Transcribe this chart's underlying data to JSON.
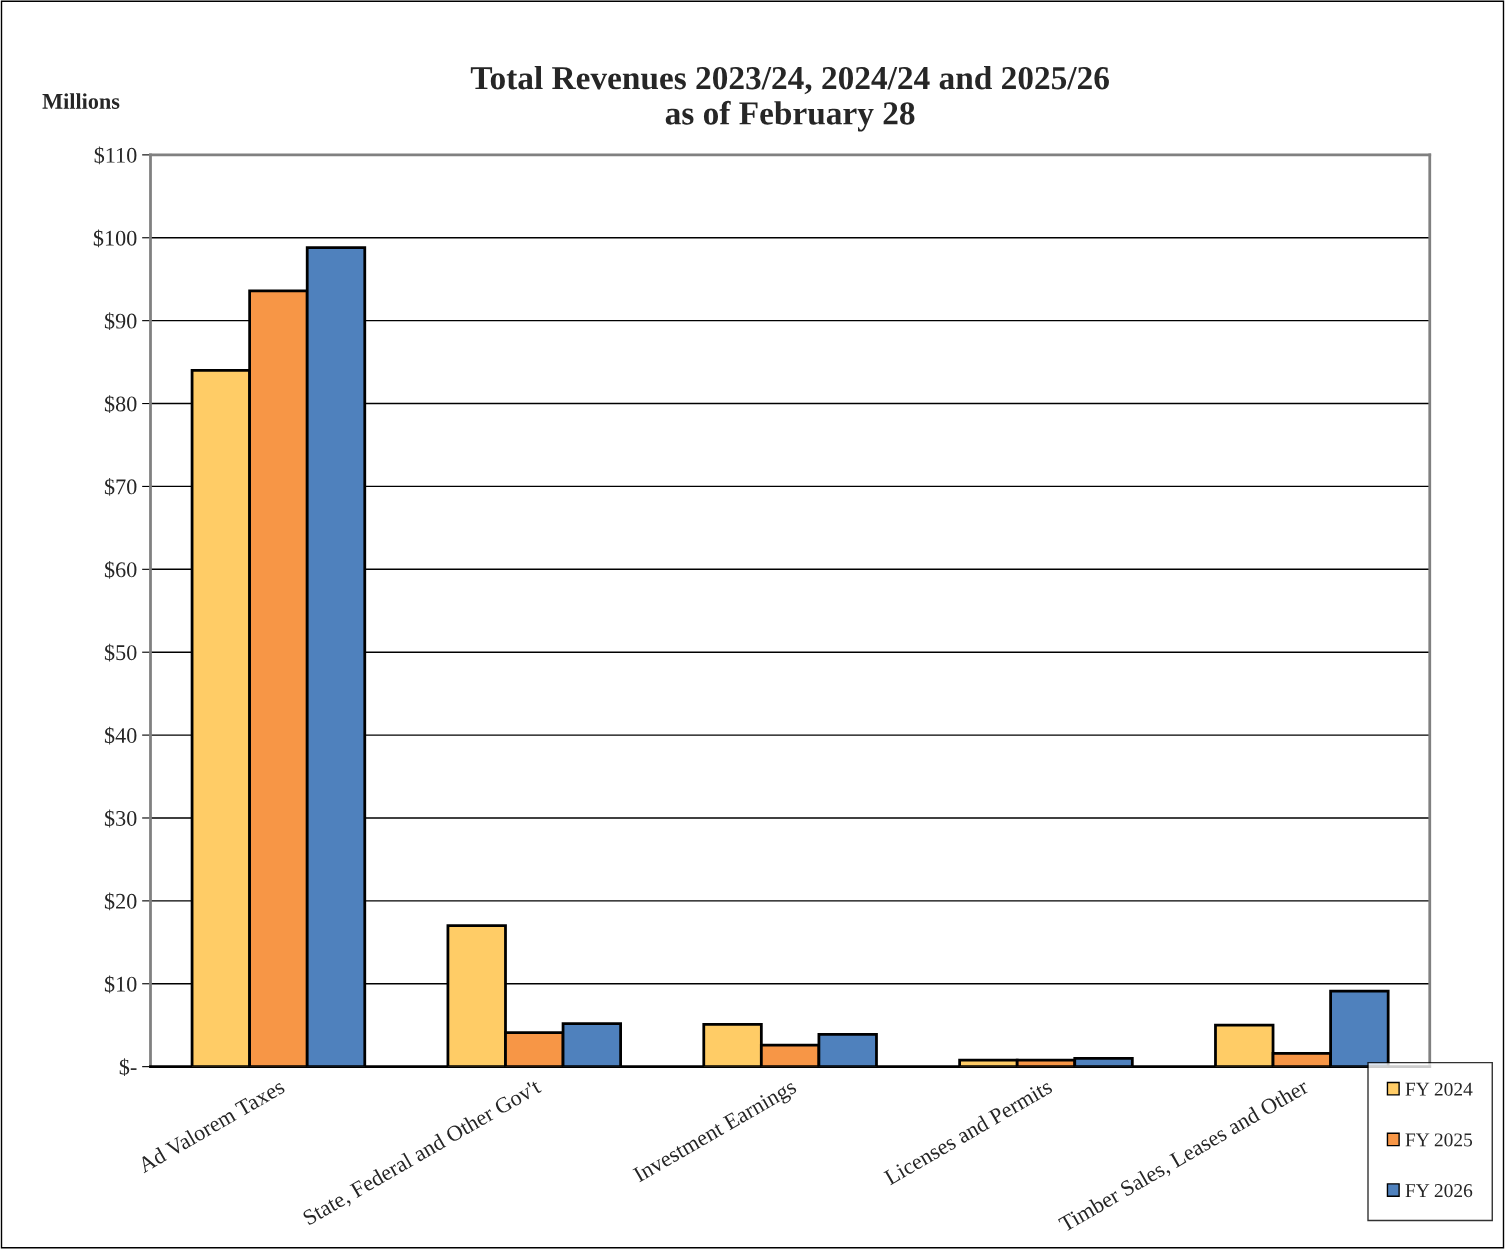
{
  "chart_data": {
    "type": "bar",
    "title": "Total Revenues 2023/24, 2024/24 and 2025/26\nas of February 28",
    "ylabel": "Millions",
    "categories": [
      "Ad Valorem Taxes",
      "State, Federal and Other Gov't",
      "Investment Earnings",
      "Licenses and Permits",
      "Timber Sales, Leases and Other"
    ],
    "series": [
      {
        "name": "FY 2024",
        "color": "#ffcc66",
        "values": [
          84.0,
          17.0,
          5.1,
          0.8,
          5.0
        ]
      },
      {
        "name": "FY 2025",
        "color": "#f79646",
        "values": [
          93.6,
          4.1,
          2.6,
          0.8,
          1.6
        ]
      },
      {
        "name": "FY 2026",
        "color": "#4f81bd",
        "values": [
          98.8,
          5.2,
          3.9,
          1.0,
          9.1
        ]
      }
    ],
    "ylim": [
      0,
      110
    ],
    "yticks": [
      {
        "value": 0,
        "label": "$-"
      },
      {
        "value": 10,
        "label": "$10"
      },
      {
        "value": 20,
        "label": "$20"
      },
      {
        "value": 30,
        "label": "$30"
      },
      {
        "value": 40,
        "label": "$40"
      },
      {
        "value": 50,
        "label": "$50"
      },
      {
        "value": 60,
        "label": "$60"
      },
      {
        "value": 70,
        "label": "$70"
      },
      {
        "value": 80,
        "label": "$80"
      },
      {
        "value": 90,
        "label": "$90"
      },
      {
        "value": 100,
        "label": "$100"
      },
      {
        "value": 110,
        "label": "$110"
      }
    ],
    "grid": "y",
    "legend": "bottom right"
  }
}
